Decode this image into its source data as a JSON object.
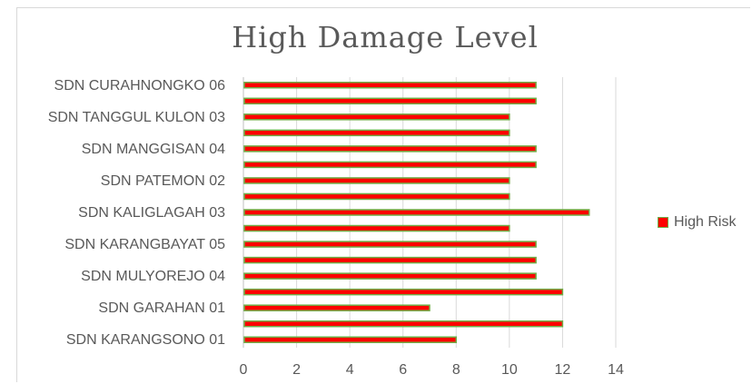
{
  "chart_data": {
    "type": "bar",
    "orientation": "horizontal",
    "title": "High Damage Level",
    "categories_top_to_bottom": [
      "SDN CURAHNONGKO 06",
      "",
      "SDN TANGGUL KULON 03",
      "",
      "SDN MANGGISAN 04",
      "",
      "SDN PATEMON 02",
      "",
      "SDN KALIGLAGAH 03",
      "",
      "SDN KARANGBAYAT 05",
      "",
      "SDN MULYOREJO 04",
      "",
      "SDN GARAHAN 01",
      "",
      "SDN KARANGSONO 01"
    ],
    "series": [
      {
        "name": "High Risk",
        "values": [
          11,
          11,
          10,
          10,
          11,
          11,
          10,
          10,
          13,
          10,
          11,
          11,
          11,
          12,
          7,
          12,
          8
        ]
      }
    ],
    "xlim": [
      0,
      14
    ],
    "x_ticks": [
      "0",
      "2",
      "4",
      "6",
      "8",
      "10",
      "12",
      "14"
    ],
    "grid": "vertical",
    "legend_position": "right",
    "colors": {
      "bar_fill": "#ff0000",
      "bar_stroke": "#70ad47",
      "grid": "#d9d9d9",
      "axis": "#bfbfbf",
      "text": "#595959"
    }
  }
}
